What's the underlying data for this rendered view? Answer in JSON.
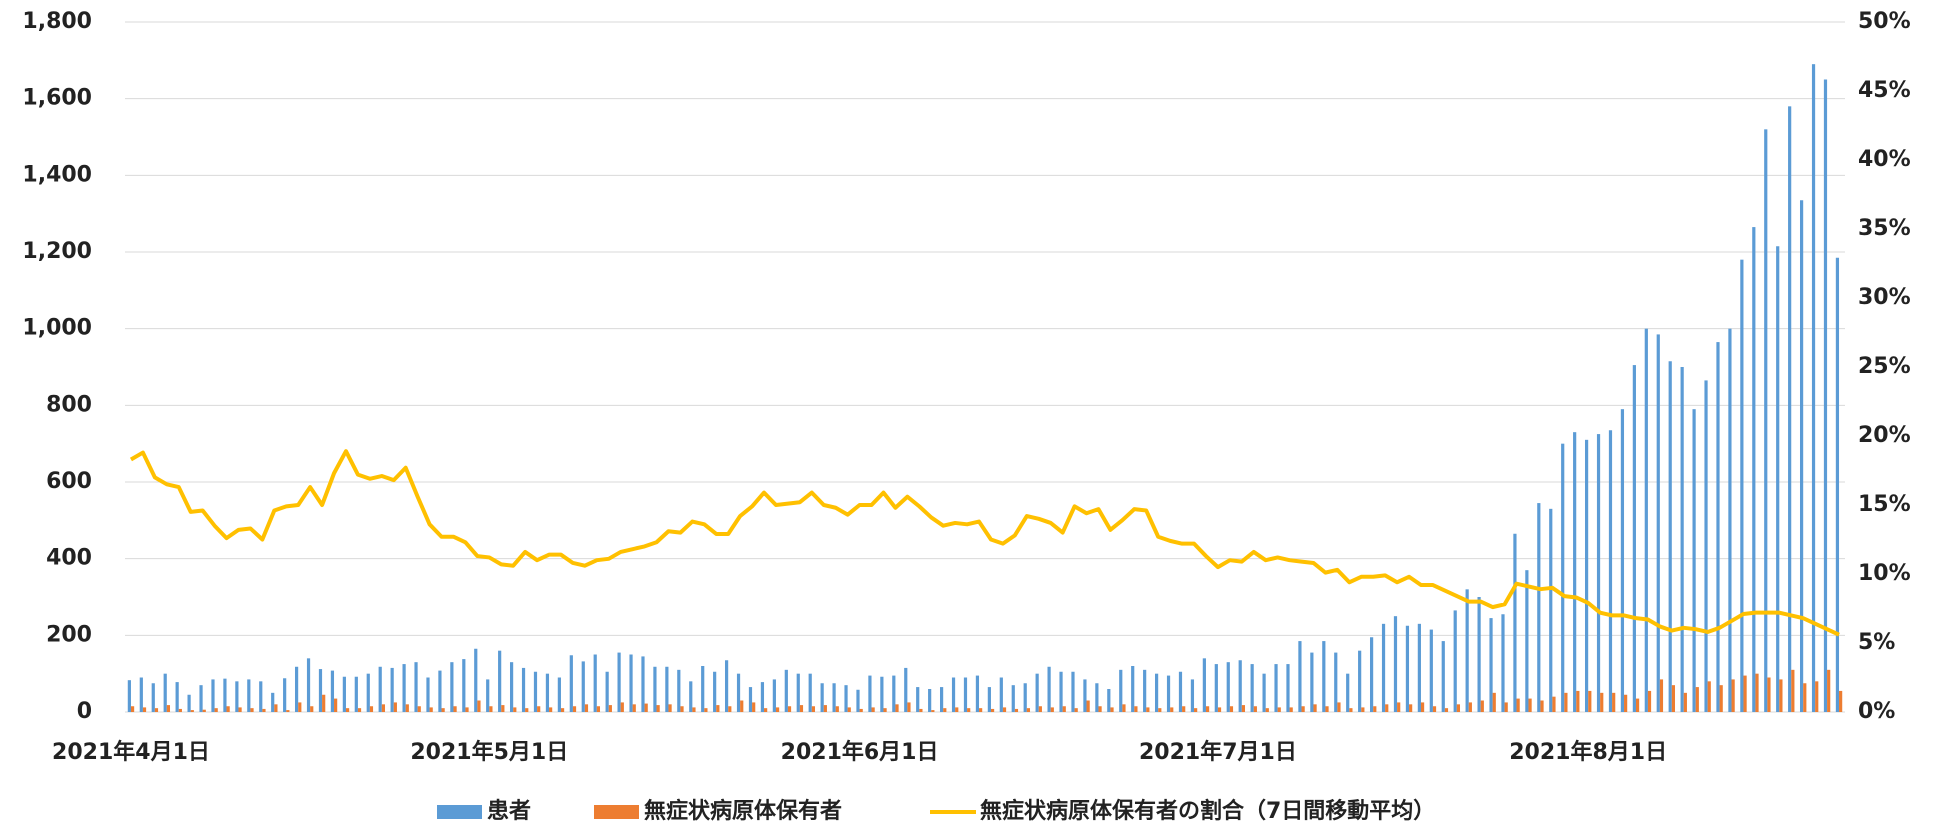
{
  "chart_data": {
    "type": "bar-line",
    "categories": [
      "2021年4月1日",
      null,
      null,
      null,
      null,
      null,
      null,
      null,
      null,
      null,
      null,
      null,
      null,
      null,
      null,
      null,
      null,
      null,
      null,
      null,
      null,
      null,
      null,
      null,
      null,
      null,
      null,
      null,
      null,
      null,
      "2021年5月1日",
      null,
      null,
      null,
      null,
      null,
      null,
      null,
      null,
      null,
      null,
      null,
      null,
      null,
      null,
      null,
      null,
      null,
      null,
      null,
      null,
      null,
      null,
      null,
      null,
      null,
      null,
      null,
      null,
      null,
      null,
      "2021年6月1日",
      null,
      null,
      null,
      null,
      null,
      null,
      null,
      null,
      null,
      null,
      null,
      null,
      null,
      null,
      null,
      null,
      null,
      null,
      null,
      null,
      null,
      null,
      null,
      null,
      null,
      null,
      null,
      null,
      null,
      "2021年7月1日",
      null,
      null,
      null,
      null,
      null,
      null,
      null,
      null,
      null,
      null,
      null,
      null,
      null,
      null,
      null,
      null,
      null,
      null,
      null,
      null,
      null,
      null,
      null,
      null,
      null,
      null,
      null,
      null,
      null,
      null,
      "2021年8月1日",
      null,
      null,
      null,
      null,
      null,
      null,
      null,
      null,
      null,
      null,
      null,
      null,
      null,
      null,
      null,
      null,
      null,
      null,
      null,
      null,
      null
    ],
    "series": [
      {
        "name": "患者",
        "color": "#5b9bd5",
        "kind": "bar",
        "values": [
          83,
          90,
          75,
          100,
          78,
          45,
          70,
          85,
          87,
          80,
          85,
          80,
          50,
          88,
          118,
          140,
          112,
          108,
          92,
          92,
          100,
          118,
          115,
          125,
          130,
          90,
          108,
          130,
          138,
          165,
          85,
          160,
          130,
          115,
          105,
          100,
          90,
          148,
          132,
          150,
          105,
          155,
          150,
          145,
          118,
          118,
          110,
          80,
          120,
          105,
          135,
          100,
          65,
          78,
          85,
          110,
          100,
          100,
          75,
          75,
          70,
          58,
          95,
          92,
          95,
          115,
          65,
          60,
          65,
          90,
          90,
          95,
          65,
          90,
          70,
          75,
          100,
          118,
          105,
          105,
          85,
          75,
          60,
          110,
          120,
          110,
          100,
          95,
          105,
          85,
          140,
          125,
          130,
          135,
          125,
          100,
          125,
          125,
          185,
          155,
          185,
          155,
          100,
          160,
          195,
          230,
          250,
          225,
          230,
          215,
          185,
          265,
          320,
          300,
          245,
          255,
          465,
          370,
          545,
          530,
          700,
          730,
          710,
          725,
          735,
          790,
          905,
          1000,
          985,
          915,
          900,
          790,
          865,
          965,
          1000,
          1180,
          1265,
          1520,
          1215,
          1580,
          1335,
          1690,
          1650,
          1185
        ]
      },
      {
        "name": "無症状病原体保有者",
        "color": "#ed7d31",
        "kind": "bar",
        "values": [
          15,
          12,
          10,
          18,
          8,
          5,
          6,
          10,
          15,
          12,
          10,
          8,
          20,
          5,
          25,
          15,
          45,
          35,
          10,
          10,
          15,
          20,
          25,
          20,
          15,
          12,
          10,
          15,
          12,
          30,
          15,
          18,
          12,
          10,
          15,
          12,
          10,
          15,
          20,
          15,
          18,
          25,
          20,
          22,
          18,
          20,
          15,
          12,
          10,
          18,
          15,
          30,
          25,
          10,
          12,
          15,
          18,
          15,
          18,
          15,
          12,
          8,
          12,
          10,
          20,
          25,
          8,
          5,
          10,
          12,
          10,
          10,
          8,
          12,
          8,
          10,
          15,
          12,
          15,
          10,
          30,
          15,
          12,
          20,
          15,
          12,
          10,
          12,
          15,
          10,
          15,
          12,
          15,
          18,
          15,
          10,
          12,
          12,
          15,
          20,
          15,
          25,
          10,
          12,
          15,
          20,
          25,
          20,
          25,
          15,
          10,
          20,
          25,
          30,
          50,
          25,
          35,
          35,
          30,
          40,
          50,
          55,
          55,
          50,
          50,
          45,
          35,
          55,
          85,
          70,
          50,
          65,
          80,
          70,
          85,
          95,
          100,
          90,
          85,
          110,
          75,
          80,
          110,
          55
        ]
      },
      {
        "name": "無症状病原体保有者の割合（7日間移動平均）",
        "color": "#ffc000",
        "kind": "line",
        "axis": "y2",
        "values": [
          18.3,
          18.8,
          17.0,
          16.5,
          16.3,
          14.5,
          14.6,
          13.5,
          12.6,
          13.2,
          13.3,
          12.5,
          14.6,
          14.9,
          15.0,
          16.3,
          15.0,
          17.3,
          18.9,
          17.2,
          16.9,
          17.1,
          16.8,
          17.7,
          15.6,
          13.6,
          12.7,
          12.7,
          12.3,
          11.3,
          11.2,
          10.7,
          10.6,
          11.6,
          11.0,
          11.4,
          11.4,
          10.8,
          10.6,
          11.0,
          11.1,
          11.6,
          11.8,
          12.0,
          12.3,
          13.1,
          13.0,
          13.8,
          13.6,
          12.9,
          12.9,
          14.2,
          14.9,
          15.9,
          15.0,
          15.1,
          15.2,
          15.9,
          15.0,
          14.8,
          14.3,
          15.0,
          15.0,
          15.9,
          14.8,
          15.6,
          14.9,
          14.1,
          13.5,
          13.7,
          13.6,
          13.8,
          12.5,
          12.2,
          12.8,
          14.2,
          14.0,
          13.7,
          13.0,
          14.9,
          14.4,
          14.7,
          13.2,
          13.9,
          14.7,
          14.6,
          12.7,
          12.4,
          12.2,
          12.2,
          11.3,
          10.5,
          11.0,
          10.9,
          11.6,
          11.0,
          11.2,
          11.0,
          10.9,
          10.8,
          10.1,
          10.3,
          9.4,
          9.8,
          9.8,
          9.9,
          9.4,
          9.8,
          9.2,
          9.2,
          8.8,
          8.4,
          8.0,
          8.0,
          7.6,
          7.8,
          9.3,
          9.1,
          8.9,
          9.0,
          8.4,
          8.3,
          7.9,
          7.2,
          7.0,
          7.0,
          6.8,
          6.7,
          6.2,
          5.9,
          6.1,
          6.0,
          5.8,
          6.1,
          6.6,
          7.1,
          7.2,
          7.2,
          7.2,
          7.0,
          6.8,
          6.4,
          6.0,
          5.6
        ]
      }
    ],
    "ylim": [
      0,
      1800
    ],
    "yticks": [
      0,
      200,
      400,
      600,
      800,
      {
        "value": 1000,
        "label": "1,000"
      },
      {
        "value": 1200,
        "label": "1,200"
      },
      {
        "value": 1400,
        "label": "1,400"
      },
      {
        "value": 1600,
        "label": "1,600"
      },
      {
        "value": 1800,
        "label": "1,800"
      }
    ],
    "y2lim": [
      0,
      50
    ],
    "y2ticks": [
      {
        "value": 0,
        "label": "0%"
      },
      {
        "value": 5,
        "label": "5%"
      },
      {
        "value": 10,
        "label": "10%"
      },
      {
        "value": 15,
        "label": "15%"
      },
      {
        "value": 20,
        "label": "20%"
      },
      {
        "value": 25,
        "label": "25%"
      },
      {
        "value": 30,
        "label": "30%"
      },
      {
        "value": 35,
        "label": "35%"
      },
      {
        "value": 40,
        "label": "40%"
      },
      {
        "value": 45,
        "label": "45%"
      },
      {
        "value": 50,
        "label": "50%"
      }
    ],
    "grid": true,
    "legend": "bottom"
  }
}
